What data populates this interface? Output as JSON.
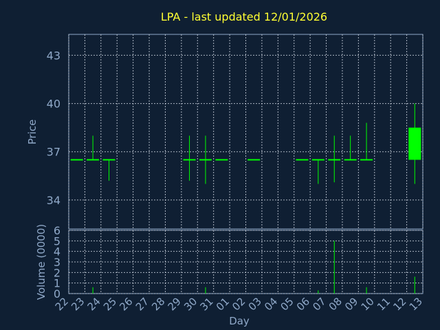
{
  "colors": {
    "background": "#0f1f33",
    "title": "#ffff33",
    "axis_text": "#8fa8c8",
    "candle": "#00ff00",
    "volume": "#00ff00"
  },
  "chart_data": {
    "type": "candlestick",
    "title": "LPA - last updated 12/01/2026",
    "xlabel": "Day",
    "price_panel": {
      "ylabel": "Price",
      "ylim": [
        32.2,
        44.3
      ],
      "yticks": [
        "34",
        "37",
        "40",
        "43"
      ],
      "grid": true
    },
    "volume_panel": {
      "ylabel": "Volume (0000)",
      "ylim": [
        0,
        6
      ],
      "yticks": [
        "0",
        "1",
        "2",
        "3",
        "4",
        "5",
        "6"
      ],
      "grid": true
    },
    "x_ticks": [
      "22",
      "23",
      "24",
      "25",
      "26",
      "27",
      "28",
      "29",
      "30",
      "31",
      "01",
      "02",
      "03",
      "04",
      "05",
      "06",
      "07",
      "08",
      "09",
      "10",
      "11",
      "12",
      "13"
    ],
    "candles": [
      {
        "day": "22",
        "open": 36.5,
        "high": 36.5,
        "low": 36.5,
        "close": 36.5,
        "volume": 0.0
      },
      {
        "day": "23",
        "open": 36.5,
        "high": 38.0,
        "low": 36.5,
        "close": 36.5,
        "volume": 0.6
      },
      {
        "day": "24",
        "open": 36.5,
        "high": 36.5,
        "low": 35.2,
        "close": 36.5,
        "volume": 0.0
      },
      {
        "day": "29",
        "open": 36.5,
        "high": 38.0,
        "low": 35.2,
        "close": 36.5,
        "volume": 0.0
      },
      {
        "day": "30",
        "open": 36.5,
        "high": 38.0,
        "low": 35.0,
        "close": 36.5,
        "volume": 0.6
      },
      {
        "day": "31",
        "open": 36.5,
        "high": 36.5,
        "low": 36.5,
        "close": 36.5,
        "volume": 0.0
      },
      {
        "day": "02",
        "open": 36.5,
        "high": 36.5,
        "low": 36.5,
        "close": 36.5,
        "volume": 0.0
      },
      {
        "day": "05",
        "open": 36.5,
        "high": 36.5,
        "low": 36.5,
        "close": 36.5,
        "volume": 0.0
      },
      {
        "day": "06",
        "open": 36.5,
        "high": 36.5,
        "low": 35.0,
        "close": 36.5,
        "volume": 0.3
      },
      {
        "day": "07",
        "open": 36.5,
        "high": 38.0,
        "low": 35.1,
        "close": 36.5,
        "volume": 5.0
      },
      {
        "day": "08",
        "open": 36.5,
        "high": 38.0,
        "low": 36.5,
        "close": 36.5,
        "volume": 0.0
      },
      {
        "day": "09",
        "open": 36.5,
        "high": 38.8,
        "low": 36.5,
        "close": 36.5,
        "volume": 0.6
      },
      {
        "day": "12",
        "open": 36.5,
        "high": 40.0,
        "low": 35.0,
        "close": 38.5,
        "volume": 1.6
      }
    ]
  }
}
